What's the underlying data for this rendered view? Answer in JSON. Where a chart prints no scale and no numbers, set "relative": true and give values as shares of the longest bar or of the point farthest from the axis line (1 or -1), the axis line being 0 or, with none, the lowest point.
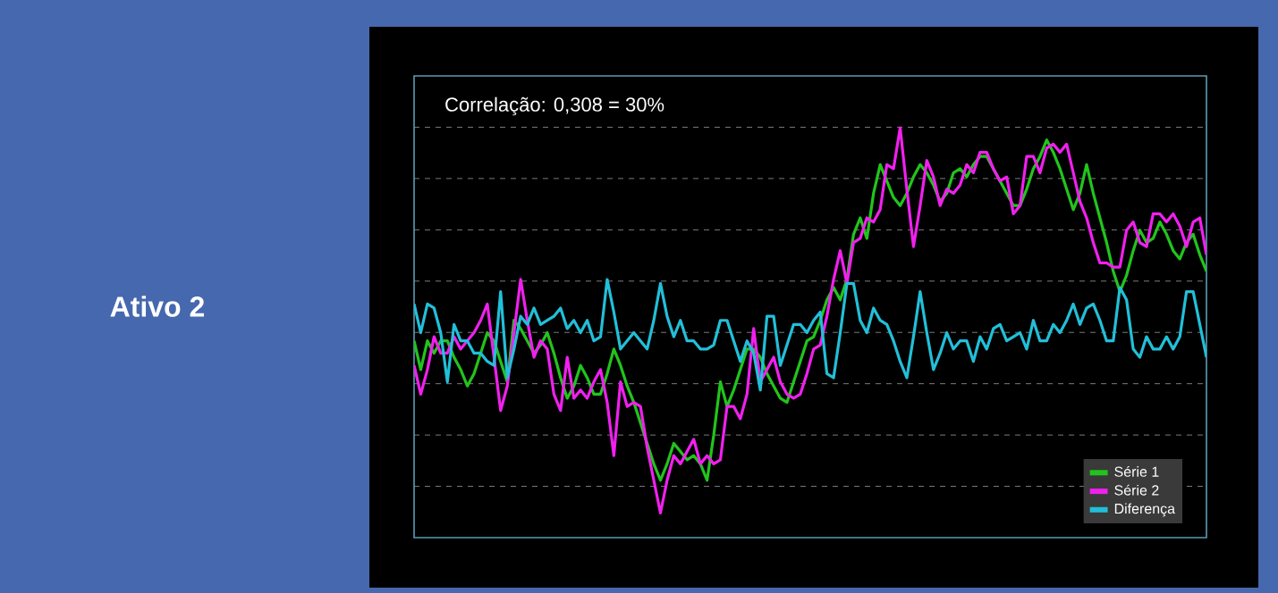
{
  "chart_data": {
    "type": "line",
    "relative": true,
    "title": "Ativo 2",
    "annotations": [
      "Correlação: 0,308 = 30%"
    ],
    "categories": [
      null,
      null,
      null,
      null,
      null,
      null,
      null,
      null,
      null,
      null,
      null,
      null,
      null,
      null,
      null,
      null,
      null,
      null,
      null,
      null,
      null,
      null,
      null,
      null,
      null,
      null,
      null,
      null,
      null,
      null,
      null,
      null,
      null,
      null,
      null,
      null,
      null,
      null,
      null,
      null,
      null,
      null,
      null,
      null,
      null,
      null,
      null,
      null,
      null,
      null,
      null,
      null,
      null,
      null,
      null,
      null,
      null,
      null,
      null,
      null,
      null,
      null,
      null,
      null,
      null,
      null,
      null,
      null,
      null,
      null,
      null,
      null,
      null,
      null,
      null,
      null,
      null,
      null,
      null,
      null,
      null,
      null,
      null,
      null,
      null,
      null,
      null,
      null,
      null,
      null,
      null,
      null,
      null,
      null,
      null,
      null,
      null,
      null,
      null,
      null,
      null,
      null,
      null,
      null,
      null,
      null,
      null,
      null,
      null,
      null,
      null,
      null,
      null,
      null,
      null,
      null,
      null,
      null,
      null,
      null
    ],
    "grid": "y",
    "legend": "bottom right",
    "marker": "none",
    "line_style": "solid",
    "series": [
      {
        "name": "Série 1",
        "color": "#22c41c",
        "values": [
          0.48,
          0.41,
          0.48,
          0.45,
          0.48,
          0.48,
          0.44,
          0.41,
          0.37,
          0.4,
          0.45,
          0.5,
          0.48,
          0.43,
          0.38,
          0.53,
          0.51,
          0.48,
          0.45,
          0.47,
          0.5,
          0.45,
          0.39,
          0.34,
          0.37,
          0.42,
          0.39,
          0.35,
          0.35,
          0.4,
          0.46,
          0.42,
          0.37,
          0.33,
          0.28,
          0.23,
          0.18,
          0.14,
          0.18,
          0.23,
          0.21,
          0.19,
          0.2,
          0.18,
          0.14,
          0.25,
          0.38,
          0.32,
          0.36,
          0.41,
          0.46,
          0.46,
          0.44,
          0.4,
          0.37,
          0.34,
          0.33,
          0.38,
          0.43,
          0.48,
          0.49,
          0.53,
          0.58,
          0.61,
          0.58,
          0.63,
          0.74,
          0.78,
          0.73,
          0.84,
          0.91,
          0.87,
          0.83,
          0.81,
          0.84,
          0.88,
          0.91,
          0.89,
          0.86,
          0.82,
          0.84,
          0.89,
          0.9,
          0.88,
          0.91,
          0.93,
          0.93,
          0.9,
          0.87,
          0.84,
          0.81,
          0.81,
          0.85,
          0.9,
          0.93,
          0.97,
          0.94,
          0.9,
          0.85,
          0.8,
          0.84,
          0.91,
          0.84,
          0.78,
          0.72,
          0.65,
          0.6,
          0.64,
          0.7,
          0.75,
          0.72,
          0.73,
          0.77,
          0.74,
          0.7,
          0.68,
          0.72,
          0.74,
          0.69,
          0.65
        ]
      },
      {
        "name": "Série 2",
        "color": "#f020ee",
        "values": [
          0.42,
          0.35,
          0.41,
          0.49,
          0.45,
          0.45,
          0.49,
          0.46,
          0.48,
          0.5,
          0.53,
          0.57,
          0.44,
          0.31,
          0.37,
          0.5,
          0.63,
          0.53,
          0.44,
          0.48,
          0.46,
          0.35,
          0.31,
          0.44,
          0.34,
          0.36,
          0.34,
          0.38,
          0.41,
          0.33,
          0.2,
          0.38,
          0.32,
          0.33,
          0.32,
          0.22,
          0.14,
          0.06,
          0.14,
          0.2,
          0.18,
          0.21,
          0.24,
          0.18,
          0.2,
          0.18,
          0.19,
          0.32,
          0.32,
          0.29,
          0.35,
          0.51,
          0.38,
          0.41,
          0.44,
          0.38,
          0.35,
          0.34,
          0.35,
          0.4,
          0.46,
          0.47,
          0.54,
          0.63,
          0.7,
          0.62,
          0.72,
          0.73,
          0.78,
          0.77,
          0.8,
          0.91,
          0.9,
          1.0,
          0.85,
          0.71,
          0.81,
          0.92,
          0.88,
          0.81,
          0.85,
          0.84,
          0.86,
          0.91,
          0.89,
          0.94,
          0.94,
          0.9,
          0.87,
          0.88,
          0.79,
          0.81,
          0.93,
          0.93,
          0.89,
          0.95,
          0.96,
          0.94,
          0.96,
          0.89,
          0.82,
          0.78,
          0.72,
          0.67,
          0.67,
          0.66,
          0.66,
          0.75,
          0.77,
          0.72,
          0.71,
          0.79,
          0.79,
          0.77,
          0.79,
          0.76,
          0.71,
          0.77,
          0.78,
          0.69
        ]
      },
      {
        "name": "Diferença",
        "color": "#22bfd8",
        "values": [
          0.57,
          0.5,
          0.57,
          0.56,
          0.5,
          0.38,
          0.52,
          0.48,
          0.48,
          0.45,
          0.45,
          0.43,
          0.42,
          0.6,
          0.39,
          0.46,
          0.54,
          0.52,
          0.56,
          0.52,
          0.53,
          0.54,
          0.56,
          0.51,
          0.53,
          0.5,
          0.53,
          0.48,
          0.49,
          0.63,
          0.55,
          0.46,
          0.48,
          0.5,
          0.48,
          0.46,
          0.53,
          0.62,
          0.54,
          0.49,
          0.53,
          0.48,
          0.48,
          0.46,
          0.46,
          0.47,
          0.53,
          0.53,
          0.48,
          0.43,
          0.48,
          0.45,
          0.36,
          0.54,
          0.54,
          0.42,
          0.47,
          0.52,
          0.52,
          0.5,
          0.53,
          0.55,
          0.4,
          0.39,
          0.5,
          0.62,
          0.62,
          0.53,
          0.5,
          0.56,
          0.53,
          0.52,
          0.48,
          0.43,
          0.39,
          0.49,
          0.6,
          0.5,
          0.41,
          0.45,
          0.5,
          0.46,
          0.48,
          0.48,
          0.43,
          0.49,
          0.46,
          0.51,
          0.52,
          0.48,
          0.49,
          0.5,
          0.46,
          0.53,
          0.48,
          0.48,
          0.52,
          0.5,
          0.53,
          0.57,
          0.52,
          0.56,
          0.57,
          0.53,
          0.48,
          0.48,
          0.61,
          0.58,
          0.46,
          0.44,
          0.49,
          0.46,
          0.46,
          0.49,
          0.46,
          0.49,
          0.6,
          0.6,
          0.52,
          0.44
        ]
      }
    ]
  }
}
